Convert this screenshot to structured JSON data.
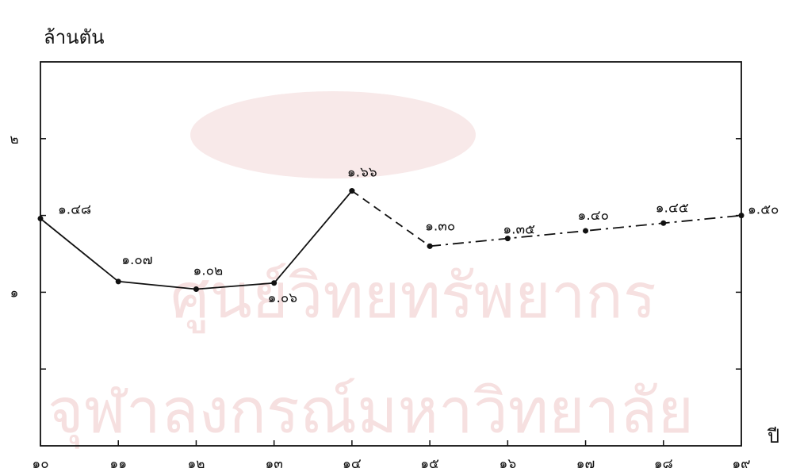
{
  "chart_data": {
    "type": "line",
    "ylabel": "ล้านตัน",
    "xlabel": "ปี",
    "ylim": [
      0,
      2.5
    ],
    "xlim": [
      10,
      19
    ],
    "x_ticks": [
      "๑๐",
      "๑๑",
      "๑๒",
      "๑๓",
      "๑๔",
      "๑๕",
      "๑๖",
      "๑๗",
      "๑๘",
      "๑๙"
    ],
    "y_ticks": [
      {
        "value": 1,
        "label": "๑"
      },
      {
        "value": 2,
        "label": "๒"
      }
    ],
    "grid": false,
    "series": [
      {
        "style": "solid",
        "points": [
          {
            "x": 10,
            "y": 1.48,
            "label": "๑.๔๘"
          },
          {
            "x": 11,
            "y": 1.07,
            "label": "๑.๐๗"
          },
          {
            "x": 12,
            "y": 1.02,
            "label": "๑.๐๒"
          },
          {
            "x": 13,
            "y": 1.06,
            "label": "๑.๐๖"
          },
          {
            "x": 14,
            "y": 1.66,
            "label": "๑.๖๖"
          }
        ]
      },
      {
        "style": "dashed",
        "points": [
          {
            "x": 14,
            "y": 1.66
          },
          {
            "x": 15,
            "y": 1.3,
            "label": "๑.๓๐"
          }
        ]
      },
      {
        "style": "dash-dot",
        "points": [
          {
            "x": 15,
            "y": 1.3
          },
          {
            "x": 16,
            "y": 1.35,
            "label": "๑.๓๕"
          },
          {
            "x": 17,
            "y": 1.4,
            "label": "๑.๔๐"
          },
          {
            "x": 18,
            "y": 1.45,
            "label": "๑.๔๕"
          },
          {
            "x": 19,
            "y": 1.5,
            "label": "๑.๕๐"
          }
        ]
      }
    ]
  },
  "watermark": {
    "line1": "ศูนย์วิทยทรัพยากร",
    "line2": "จุฬาลงกรณ์มหาวิทยาลัย"
  }
}
